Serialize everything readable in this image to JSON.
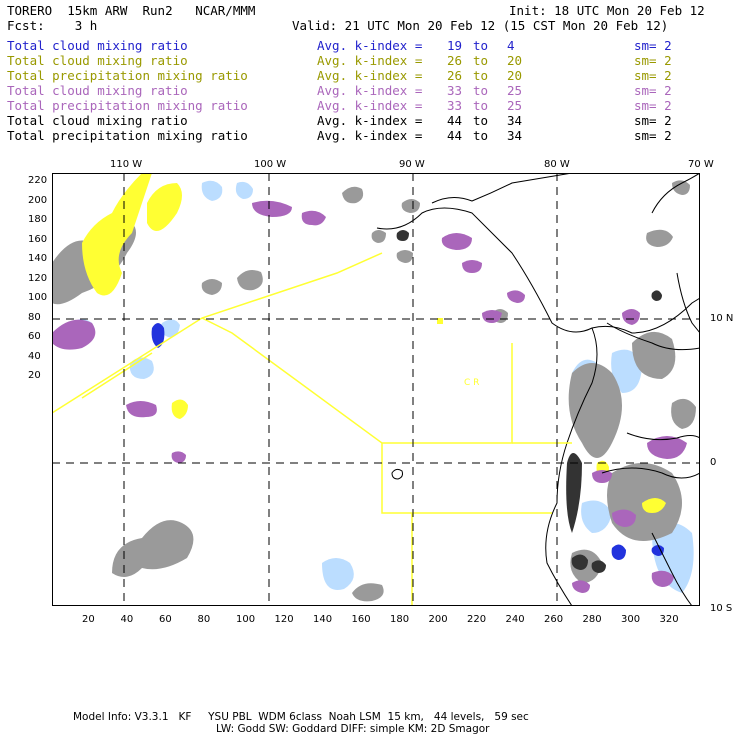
{
  "header": {
    "model": "TORERO",
    "resolution": "15km ARW",
    "run": "Run2",
    "org": "NCAR/MMM",
    "init": "Init: 18 UTC Mon 20 Feb 12",
    "fcst_label": "Fcst:",
    "fcst_value": "3 h",
    "valid": "Valid: 21 UTC Mon 20 Feb 12 (15 CST Mon 20 Feb 12)"
  },
  "legend": [
    {
      "field": "Total cloud mixing ratio",
      "kindex": "Avg. k-index =",
      "from": "19",
      "to_label": "to",
      "to": "4",
      "sm": "sm= 2",
      "color": "#2222cc"
    },
    {
      "field": "Total cloud mixing ratio",
      "kindex": "Avg. k-index =",
      "from": "26",
      "to_label": "to",
      "to": "20",
      "sm": "sm= 2",
      "color": "#999900"
    },
    {
      "field": "Total precipitation mixing ratio",
      "kindex": "Avg. k-index =",
      "from": "26",
      "to_label": "to",
      "to": "20",
      "sm": "sm= 2",
      "color": "#999900"
    },
    {
      "field": "Total cloud mixing ratio",
      "kindex": "Avg. k-index =",
      "from": "33",
      "to_label": "to",
      "to": "25",
      "sm": "sm= 2",
      "color": "#aa66bb"
    },
    {
      "field": "Total precipitation mixing ratio",
      "kindex": "Avg. k-index =",
      "from": "33",
      "to_label": "to",
      "to": "25",
      "sm": "sm= 2",
      "color": "#aa66bb"
    },
    {
      "field": "Total cloud mixing ratio",
      "kindex": "Avg. k-index =",
      "from": "44",
      "to_label": "to",
      "to": "34",
      "sm": "sm= 2",
      "color": "#000000"
    },
    {
      "field": "Total precipitation mixing ratio",
      "kindex": "Avg. k-index =",
      "from": "44",
      "to_label": "to",
      "to": "34",
      "sm": "sm= 2",
      "color": "#000000"
    }
  ],
  "map": {
    "lon_labels": [
      "110 W",
      "100 W",
      "90 W",
      "80 W",
      "70 W"
    ],
    "lat_labels": [
      "10 N",
      "0",
      "10 S"
    ],
    "x_ticks": [
      "20",
      "40",
      "60",
      "80",
      "100",
      "120",
      "140",
      "160",
      "180",
      "200",
      "220",
      "240",
      "260",
      "280",
      "300",
      "320"
    ],
    "y_ticks": [
      "220",
      "200",
      "180",
      "160",
      "140",
      "120",
      "100",
      "80",
      "60",
      "40",
      "20"
    ],
    "zone_label": "C R",
    "colors": {
      "yellow": "#ffff33",
      "purple": "#aa66bb",
      "gray": "#9a9a9a",
      "dark": "#333333",
      "lightblue": "#bbddff",
      "blue": "#2233dd"
    }
  },
  "footer": {
    "line1": "Model Info: V3.3.1   KF     YSU PBL  WDM 6class  Noah LSM  15 km,   44 levels,   59 sec",
    "line2": "LW: Godd SW: Goddard DIFF: simple KM: 2D Smagor"
  }
}
